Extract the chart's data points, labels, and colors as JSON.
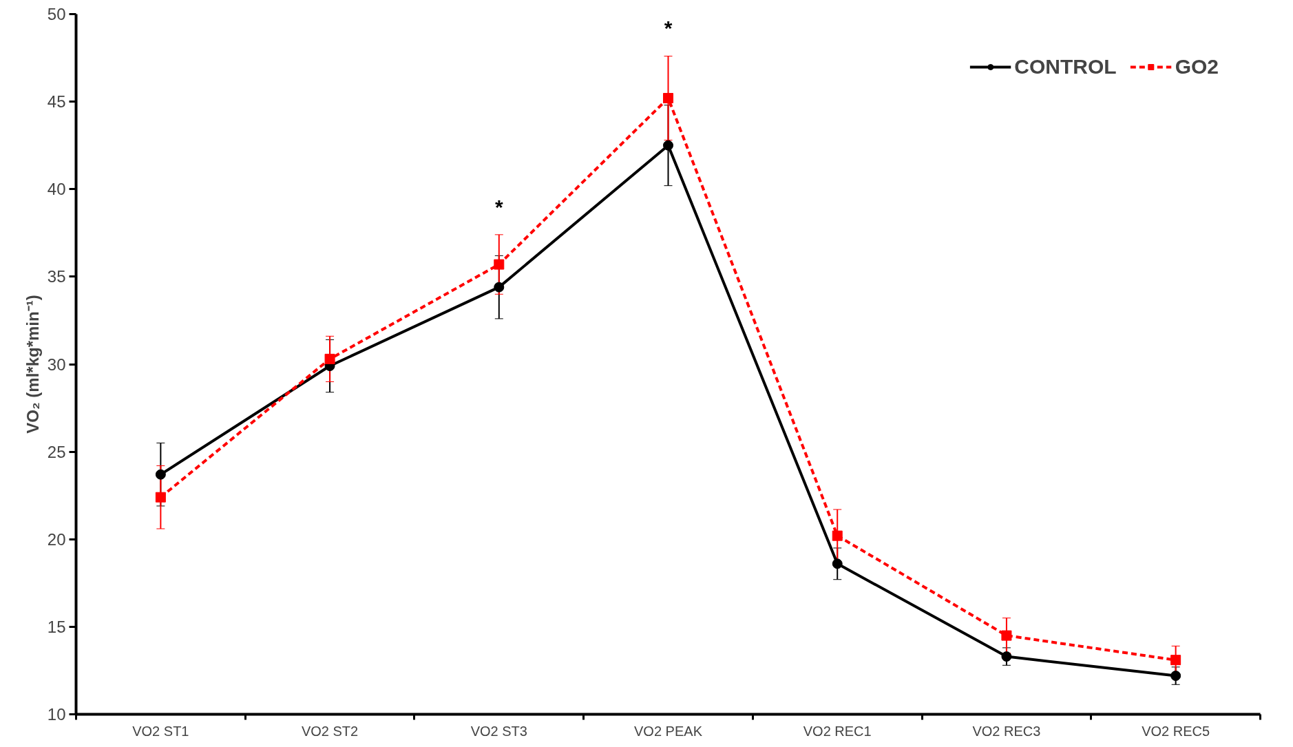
{
  "chart_data": {
    "type": "line",
    "ylabel": "VO₂ (ml*kg*min⁻¹)",
    "categories": [
      "VO2 ST1",
      "VO2 ST2",
      "VO2 ST3",
      "VO2 PEAK",
      "VO2 REC1",
      "VO2 REC3",
      "VO2 REC5"
    ],
    "series": [
      {
        "name": "CONTROL",
        "color": "#000000",
        "marker": "circle",
        "line_style": "solid",
        "values": [
          23.7,
          29.9,
          34.4,
          42.5,
          18.6,
          13.3,
          12.2
        ],
        "errors": [
          1.8,
          1.5,
          1.8,
          2.3,
          0.9,
          0.5,
          0.5
        ]
      },
      {
        "name": "GO2",
        "color": "#ff0000",
        "marker": "square",
        "line_style": "dashed",
        "values": [
          22.4,
          30.3,
          35.7,
          45.2,
          20.2,
          14.5,
          13.1
        ],
        "errors": [
          1.8,
          1.3,
          1.7,
          2.4,
          1.5,
          1.0,
          0.8
        ]
      }
    ],
    "ylim": [
      10,
      50
    ],
    "yticks": [
      10,
      15,
      20,
      25,
      30,
      35,
      40,
      45,
      50
    ],
    "grid": false,
    "legend": "top right",
    "annotations": [
      "*",
      "*"
    ]
  }
}
